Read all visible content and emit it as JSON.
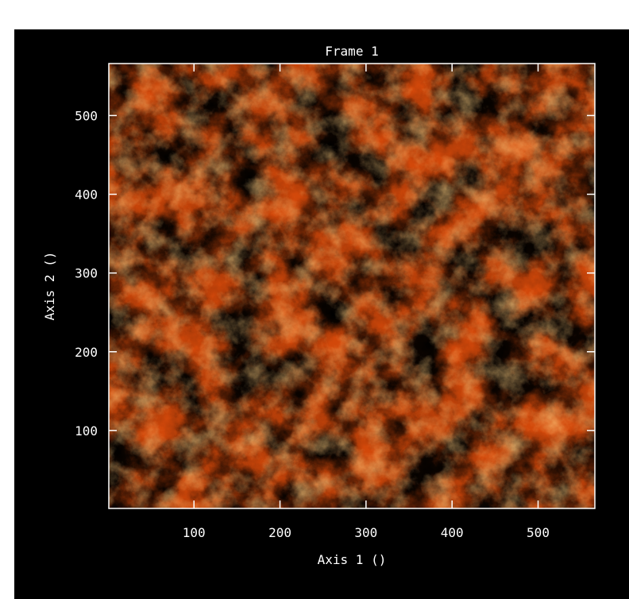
{
  "window": {
    "background": "#000000",
    "page_background": "#ffffff"
  },
  "plot": {
    "title": "Frame 1",
    "x_axis_label": "Axis 1 ()",
    "y_axis_label": "Axis 2 ()",
    "colormap": "heat (black to orange)",
    "colors": {
      "low": "#000000",
      "mid": "#e0500a",
      "high": "#ff9a2e",
      "axis": "#ffffff"
    }
  },
  "chart_data": {
    "type": "heatmap",
    "title": "Frame 1",
    "xlabel": "Axis 1 ()",
    "ylabel": "Axis 2 ()",
    "xlim": [
      1,
      566
    ],
    "ylim": [
      1,
      566
    ],
    "x_ticks": [
      100,
      200,
      300,
      400,
      500
    ],
    "y_ticks": [
      100,
      200,
      300,
      400,
      500
    ],
    "x_tick_labels": [
      "100",
      "200",
      "300",
      "400",
      "500"
    ],
    "y_tick_labels": [
      "100",
      "200",
      "300",
      "400",
      "500"
    ],
    "grid": false
  }
}
